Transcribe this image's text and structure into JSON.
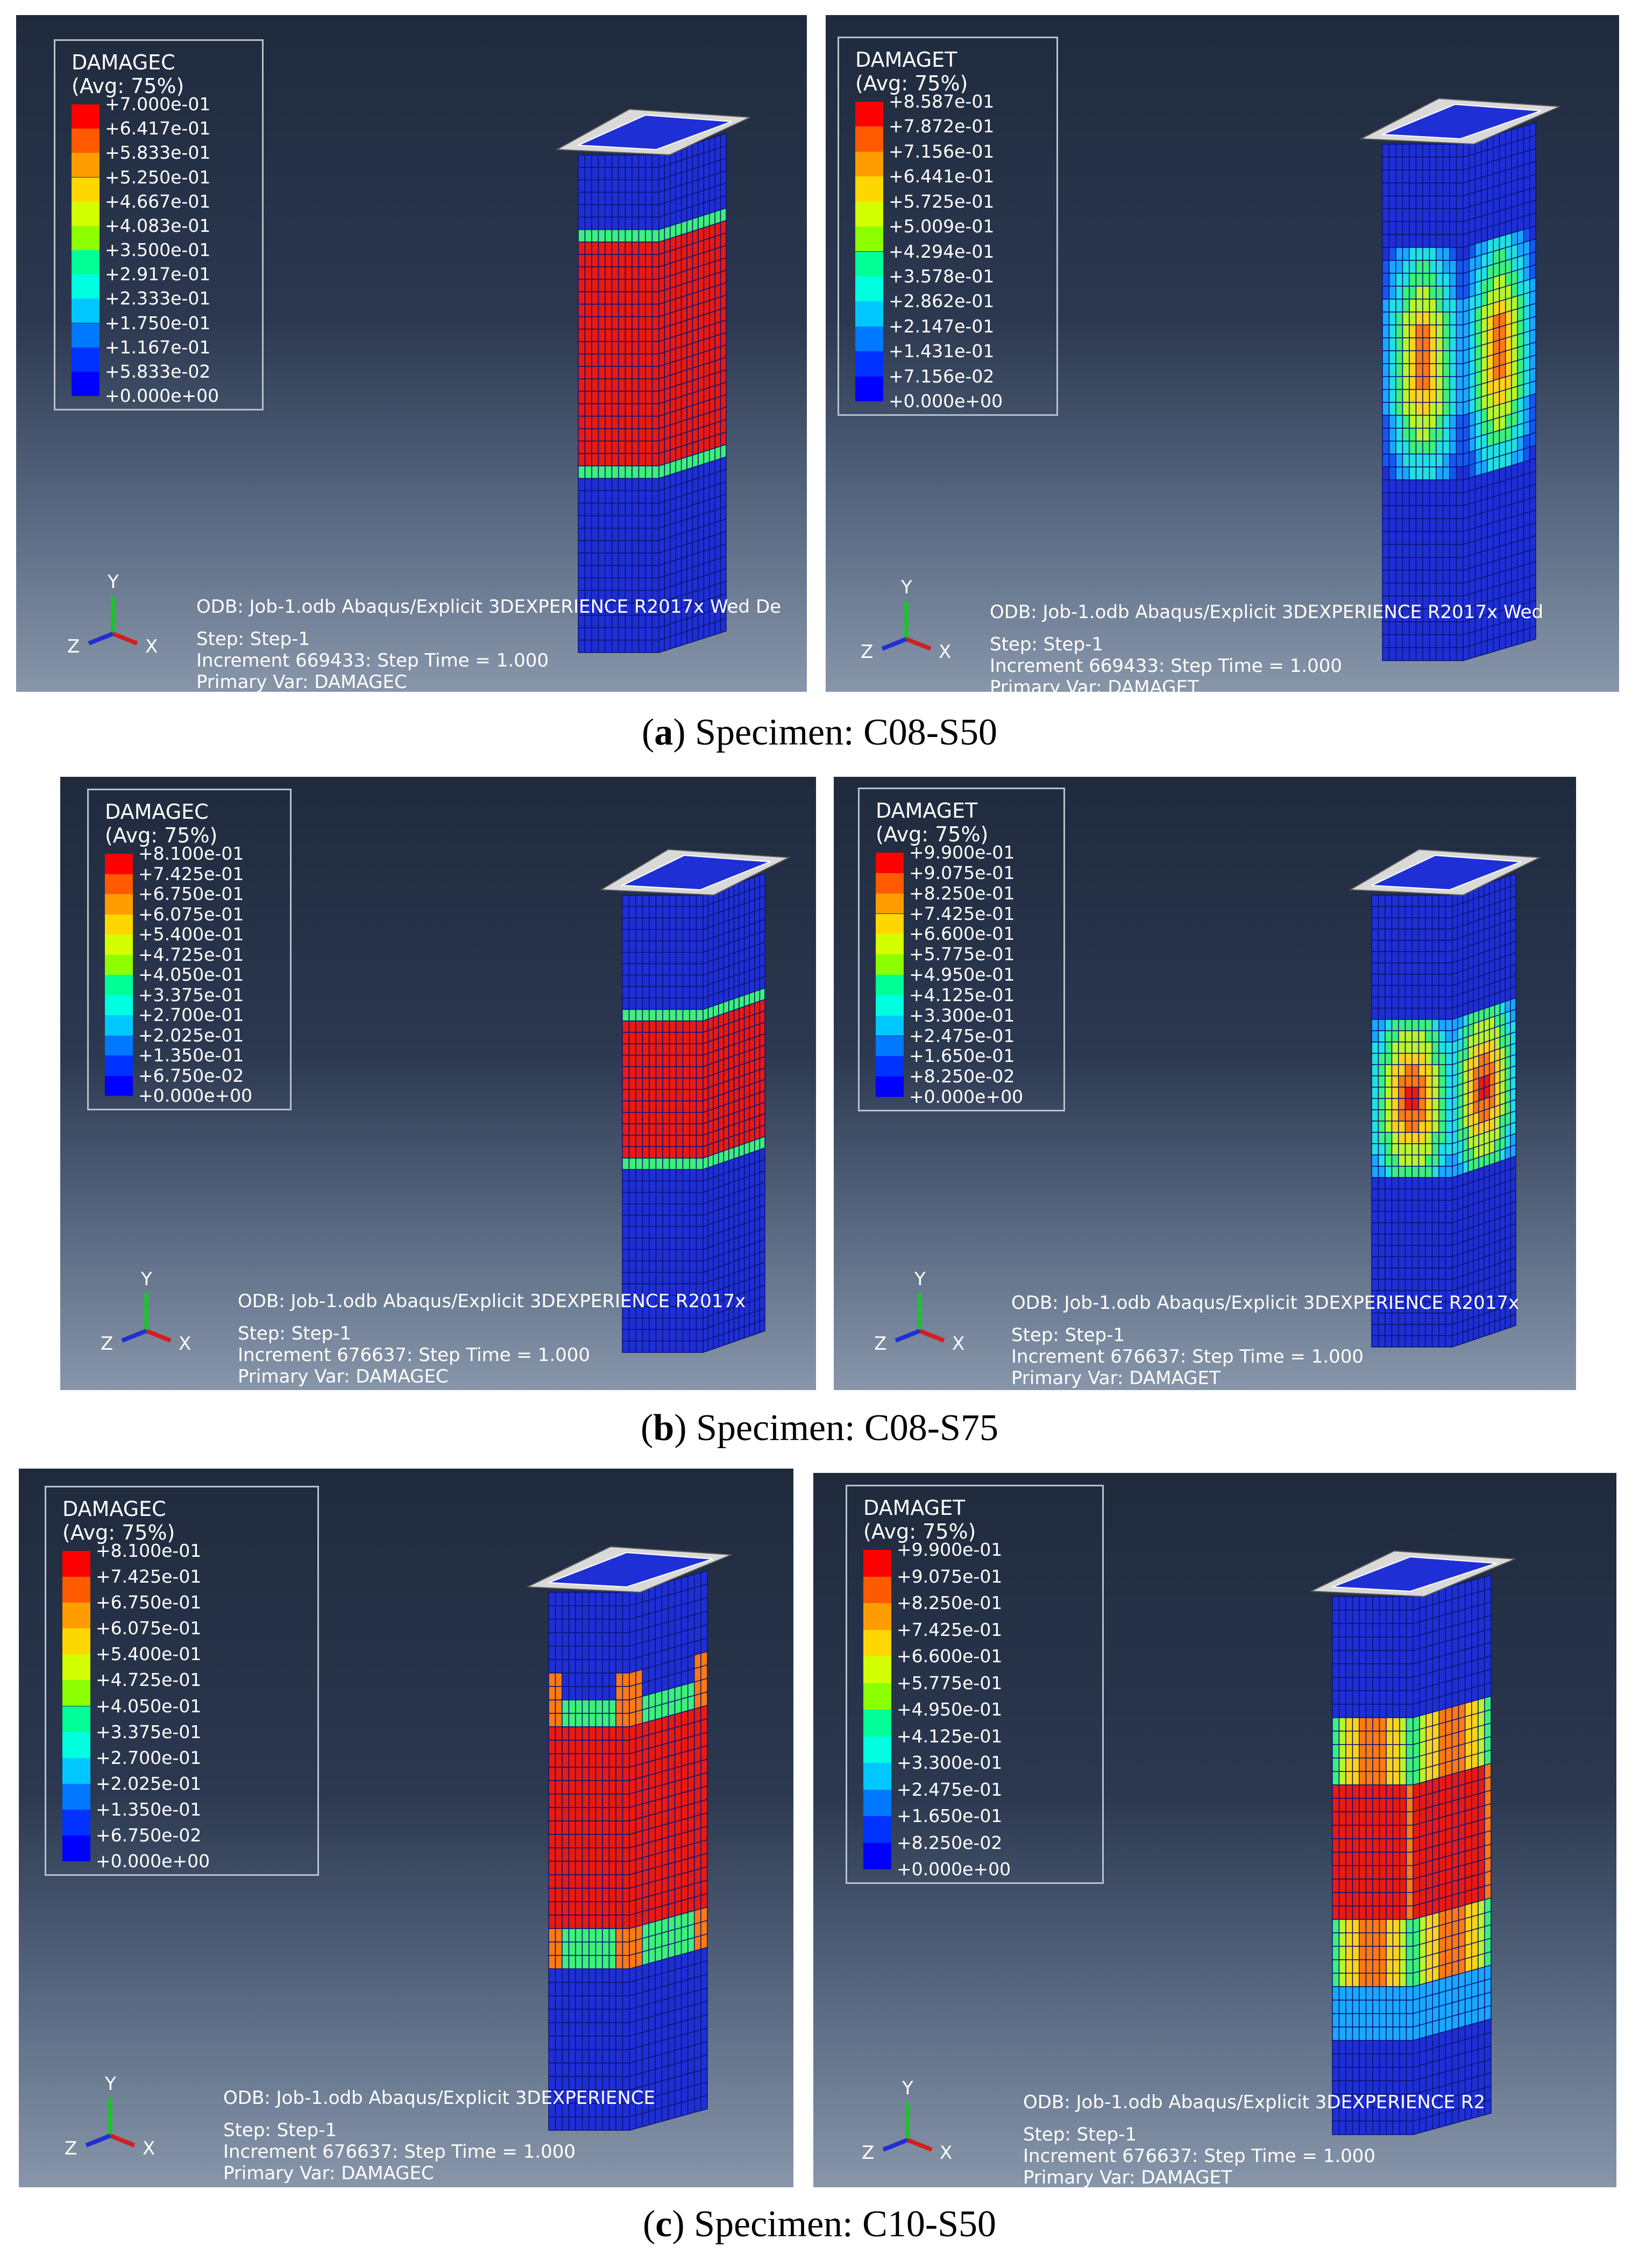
{
  "panels": [
    {
      "legend_title": "DAMAGEC",
      "legend_sub": "(Avg: 75%)",
      "levels": [
        "+7.000e-01",
        "+6.417e-01",
        "+5.833e-01",
        "+5.250e-01",
        "+4.667e-01",
        "+4.083e-01",
        "+3.500e-01",
        "+2.917e-01",
        "+2.333e-01",
        "+1.750e-01",
        "+1.167e-01",
        "+5.833e-02",
        "+0.000e+00"
      ],
      "odb_line": "ODB: Job-1.odb    Abaqus/Explicit 3DEXPERIENCE R2017x    Wed De",
      "step_line": "Step: Step-1",
      "increment_line": "Increment     669433: Step Time =     1.000",
      "var_line": "Primary Var: DAMAGEC"
    },
    {
      "legend_title": "DAMAGET",
      "legend_sub": "(Avg: 75%)",
      "levels": [
        "+8.587e-01",
        "+7.872e-01",
        "+7.156e-01",
        "+6.441e-01",
        "+5.725e-01",
        "+5.009e-01",
        "+4.294e-01",
        "+3.578e-01",
        "+2.862e-01",
        "+2.147e-01",
        "+1.431e-01",
        "+7.156e-02",
        "+0.000e+00"
      ],
      "odb_line": "ODB: Job-1.odb    Abaqus/Explicit 3DEXPERIENCE R2017x    Wed",
      "step_line": "Step: Step-1",
      "increment_line": "Increment     669433: Step Time =     1.000",
      "var_line": "Primary Var: DAMAGET"
    },
    {
      "legend_title": "DAMAGEC",
      "legend_sub": "(Avg: 75%)",
      "levels": [
        "+8.100e-01",
        "+7.425e-01",
        "+6.750e-01",
        "+6.075e-01",
        "+5.400e-01",
        "+4.725e-01",
        "+4.050e-01",
        "+3.375e-01",
        "+2.700e-01",
        "+2.025e-01",
        "+1.350e-01",
        "+6.750e-02",
        "+0.000e+00"
      ],
      "odb_line": "ODB: Job-1.odb    Abaqus/Explicit 3DEXPERIENCE R2017x",
      "step_line": "Step: Step-1",
      "increment_line": "Increment     676637: Step Time =     1.000",
      "var_line": "Primary Var: DAMAGEC"
    },
    {
      "legend_title": "DAMAGET",
      "legend_sub": "(Avg: 75%)",
      "levels": [
        "+9.900e-01",
        "+9.075e-01",
        "+8.250e-01",
        "+7.425e-01",
        "+6.600e-01",
        "+5.775e-01",
        "+4.950e-01",
        "+4.125e-01",
        "+3.300e-01",
        "+2.475e-01",
        "+1.650e-01",
        "+8.250e-02",
        "+0.000e+00"
      ],
      "odb_line": "ODB: Job-1.odb    Abaqus/Explicit 3DEXPERIENCE R2017x",
      "step_line": "Step: Step-1",
      "increment_line": "Increment     676637: Step Time =     1.000",
      "var_line": "Primary Var: DAMAGET"
    },
    {
      "legend_title": "DAMAGEC",
      "legend_sub": "(Avg: 75%)",
      "levels": [
        "+8.100e-01",
        "+7.425e-01",
        "+6.750e-01",
        "+6.075e-01",
        "+5.400e-01",
        "+4.725e-01",
        "+4.050e-01",
        "+3.375e-01",
        "+2.700e-01",
        "+2.025e-01",
        "+1.350e-01",
        "+6.750e-02",
        "+0.000e+00"
      ],
      "odb_line": "ODB: Job-1.odb    Abaqus/Explicit 3DEXPERIENCE",
      "step_line": "Step: Step-1",
      "increment_line": "Increment     676637: Step Time =     1.000",
      "var_line": "Primary Var: DAMAGEC"
    },
    {
      "legend_title": "DAMAGET",
      "legend_sub": "(Avg: 75%)",
      "levels": [
        "+9.900e-01",
        "+9.075e-01",
        "+8.250e-01",
        "+7.425e-01",
        "+6.600e-01",
        "+5.775e-01",
        "+4.950e-01",
        "+4.125e-01",
        "+3.300e-01",
        "+2.475e-01",
        "+1.650e-01",
        "+8.250e-02",
        "+0.000e+00"
      ],
      "odb_line": "ODB: Job-1.odb    Abaqus/Explicit 3DEXPERIENCE R2",
      "step_line": "Step: Step-1",
      "increment_line": "Increment     676637: Step Time =     1.000",
      "var_line": "Primary Var: DAMAGET"
    }
  ],
  "legend_colors": [
    "#ff0000",
    "#ff5a00",
    "#ff9d00",
    "#ffd700",
    "#d4ff00",
    "#8cff00",
    "#2bff2b",
    "#00ff96",
    "#00ffe1",
    "#00c8ff",
    "#0078ff",
    "#0032ff",
    "#0000ff"
  ],
  "axis_labels": {
    "x": "X",
    "y": "Y",
    "z": "Z"
  },
  "captions": [
    {
      "letter": "a",
      "open": "(",
      "close": ")",
      "text": " Specimen: C08-S50"
    },
    {
      "letter": "b",
      "open": "(",
      "close": ")",
      "text": " Specimen: C08-S75"
    },
    {
      "letter": "c",
      "open": "(",
      "close": ")",
      "text": " Specimen: C10-S50"
    }
  ],
  "colors": {
    "column_blue": "#1f2fd6",
    "damage_red": "#e81a12",
    "plate": "#d9d9d9"
  }
}
